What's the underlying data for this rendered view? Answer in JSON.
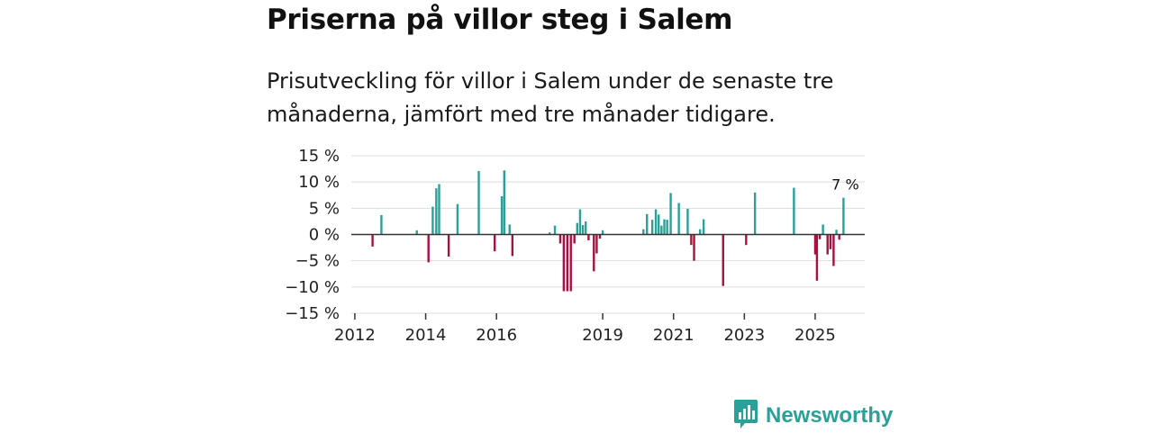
{
  "title": "Priserna på villor steg i Salem",
  "subtitle": "Prisutveckling för villor i Salem under de senaste tre månaderna, jämfört med tre månader tidigare.",
  "brand": {
    "name": "Newsworthy",
    "logo_icon": "bar-chart-bubble-icon",
    "color": "#2aa198"
  },
  "colors": {
    "positive": "#2aa198",
    "negative": "#a6123e",
    "grid": "#dddddd",
    "zero": "#333333"
  },
  "chart_data": {
    "type": "bar",
    "title": "Priserna på villor steg i Salem",
    "xlabel": "",
    "ylabel": "",
    "ylim": [
      -15,
      15
    ],
    "yticks": [
      {
        "value": 15,
        "label": "15 %"
      },
      {
        "value": 10,
        "label": "10 %"
      },
      {
        "value": 5,
        "label": "5 %"
      },
      {
        "value": 0,
        "label": "0 %"
      },
      {
        "value": -5,
        "label": "−5 %"
      },
      {
        "value": -10,
        "label": "−10 %"
      },
      {
        "value": -15,
        "label": "−15 %"
      }
    ],
    "xlim": [
      2011.9,
      2026.4
    ],
    "xticks": [
      {
        "value": 2012,
        "label": "2012"
      },
      {
        "value": 2014,
        "label": "2014"
      },
      {
        "value": 2016,
        "label": "2016"
      },
      {
        "value": 2019,
        "label": "2019"
      },
      {
        "value": 2021,
        "label": "2021"
      },
      {
        "value": 2023,
        "label": "2023"
      },
      {
        "value": 2025,
        "label": "2025"
      }
    ],
    "annotation": {
      "x": 2025.8,
      "label": "7 %"
    },
    "points": [
      {
        "x": 2012.5,
        "y": -2.3
      },
      {
        "x": 2012.75,
        "y": 3.7
      },
      {
        "x": 2013.75,
        "y": 0.8
      },
      {
        "x": 2014.08,
        "y": -5.3
      },
      {
        "x": 2014.2,
        "y": 5.3
      },
      {
        "x": 2014.3,
        "y": 8.8
      },
      {
        "x": 2014.38,
        "y": 9.6
      },
      {
        "x": 2014.65,
        "y": -4.2
      },
      {
        "x": 2014.9,
        "y": 5.8
      },
      {
        "x": 2015.5,
        "y": 12.1
      },
      {
        "x": 2015.95,
        "y": -3.2
      },
      {
        "x": 2016.15,
        "y": 7.3
      },
      {
        "x": 2016.22,
        "y": 12.2
      },
      {
        "x": 2016.37,
        "y": 1.9
      },
      {
        "x": 2016.45,
        "y": -4.1
      },
      {
        "x": 2017.5,
        "y": 0.4
      },
      {
        "x": 2017.65,
        "y": 1.7
      },
      {
        "x": 2017.8,
        "y": -1.7
      },
      {
        "x": 2017.9,
        "y": -10.8
      },
      {
        "x": 2018.0,
        "y": -10.8
      },
      {
        "x": 2018.1,
        "y": -10.8
      },
      {
        "x": 2018.2,
        "y": -1.7
      },
      {
        "x": 2018.28,
        "y": 2.2
      },
      {
        "x": 2018.36,
        "y": 4.8
      },
      {
        "x": 2018.44,
        "y": 1.8
      },
      {
        "x": 2018.52,
        "y": 2.5
      },
      {
        "x": 2018.6,
        "y": -1.1
      },
      {
        "x": 2018.75,
        "y": -7.0
      },
      {
        "x": 2018.83,
        "y": -3.6
      },
      {
        "x": 2018.92,
        "y": -0.8
      },
      {
        "x": 2019.0,
        "y": 0.8
      },
      {
        "x": 2020.15,
        "y": 1.0
      },
      {
        "x": 2020.25,
        "y": 3.9
      },
      {
        "x": 2020.4,
        "y": 2.8
      },
      {
        "x": 2020.5,
        "y": 4.8
      },
      {
        "x": 2020.58,
        "y": 3.8
      },
      {
        "x": 2020.66,
        "y": 1.7
      },
      {
        "x": 2020.74,
        "y": 2.9
      },
      {
        "x": 2020.82,
        "y": 2.8
      },
      {
        "x": 2020.92,
        "y": 7.9
      },
      {
        "x": 2021.15,
        "y": 6.0
      },
      {
        "x": 2021.4,
        "y": 4.9
      },
      {
        "x": 2021.5,
        "y": -2.0
      },
      {
        "x": 2021.58,
        "y": -5.0
      },
      {
        "x": 2021.75,
        "y": 1.0
      },
      {
        "x": 2021.85,
        "y": 2.9
      },
      {
        "x": 2022.4,
        "y": -9.8
      },
      {
        "x": 2023.05,
        "y": -2.0
      },
      {
        "x": 2023.3,
        "y": 8.0
      },
      {
        "x": 2024.4,
        "y": 8.9
      },
      {
        "x": 2025.0,
        "y": -3.8
      },
      {
        "x": 2025.05,
        "y": -8.8
      },
      {
        "x": 2025.13,
        "y": -0.9
      },
      {
        "x": 2025.22,
        "y": 1.9
      },
      {
        "x": 2025.35,
        "y": -3.8
      },
      {
        "x": 2025.43,
        "y": -2.8
      },
      {
        "x": 2025.52,
        "y": -6.0
      },
      {
        "x": 2025.6,
        "y": 0.9
      },
      {
        "x": 2025.68,
        "y": -1.0
      },
      {
        "x": 2025.8,
        "y": 7.0
      }
    ]
  }
}
